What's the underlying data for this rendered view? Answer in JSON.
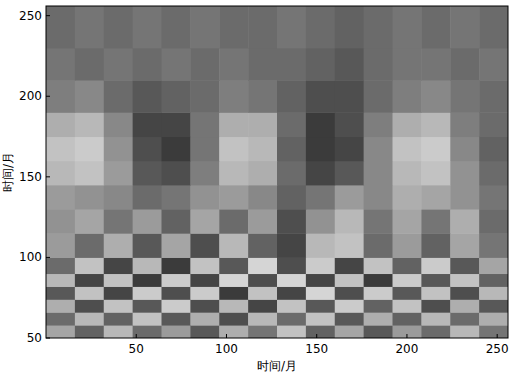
{
  "chart_data": {
    "type": "heatmap",
    "x_label": "时间/月",
    "y_label": "时间/月",
    "xlim": [
      0,
      256
    ],
    "ylim": [
      50,
      256
    ],
    "xticks": [
      50,
      100,
      150,
      200,
      250
    ],
    "yticks": [
      50,
      100,
      150,
      200,
      250
    ],
    "zlim": [
      -1,
      1
    ],
    "x_edges": [
      0,
      16,
      32,
      48,
      64,
      80,
      96,
      112,
      128,
      144,
      160,
      176,
      192,
      208,
      224,
      240,
      256
    ],
    "y_edges": [
      50,
      58,
      66,
      74,
      82,
      90,
      100,
      115,
      130,
      145,
      160,
      175,
      190,
      210,
      230,
      256
    ],
    "cells": [
      [
        0.3,
        -0.4,
        0.5,
        -0.3,
        0.2,
        -0.5,
        0.4,
        -0.2,
        0.6,
        -0.4,
        0.3,
        -0.5,
        0.2,
        -0.3,
        0.5,
        -0.2
      ],
      [
        -0.3,
        0.5,
        -0.4,
        0.6,
        -0.5,
        0.4,
        -0.6,
        0.5,
        -0.3,
        0.6,
        -0.5,
        0.4,
        -0.4,
        0.5,
        -0.3,
        0.4
      ],
      [
        0.4,
        -0.6,
        0.6,
        -0.5,
        0.7,
        -0.6,
        0.5,
        -0.7,
        0.6,
        -0.5,
        0.7,
        -0.4,
        0.6,
        -0.6,
        0.4,
        -0.5
      ],
      [
        -0.5,
        0.6,
        -0.7,
        0.7,
        -0.6,
        0.7,
        -0.8,
        0.6,
        -0.7,
        0.8,
        -0.6,
        0.7,
        -0.5,
        0.6,
        -0.6,
        0.5
      ],
      [
        0.5,
        -0.7,
        0.6,
        -0.8,
        0.7,
        -0.7,
        0.8,
        -0.6,
        0.8,
        -0.7,
        0.6,
        -0.8,
        0.7,
        -0.5,
        0.6,
        -0.4
      ],
      [
        -0.3,
        0.6,
        -0.7,
        0.5,
        -0.8,
        0.6,
        -0.5,
        0.8,
        -0.6,
        0.7,
        -0.7,
        0.6,
        -0.4,
        0.7,
        -0.5,
        0.3
      ],
      [
        0.2,
        -0.3,
        0.4,
        -0.5,
        0.3,
        -0.6,
        0.5,
        -0.4,
        -0.7,
        0.5,
        0.6,
        -0.3,
        0.2,
        -0.4,
        0.3,
        -0.2
      ],
      [
        0.1,
        0.3,
        -0.2,
        0.2,
        -0.4,
        0.3,
        -0.3,
        0.2,
        -0.6,
        0.1,
        0.5,
        -0.2,
        0.3,
        -0.2,
        0.4,
        -0.3
      ],
      [
        0.2,
        0.1,
        0.0,
        -0.3,
        -0.2,
        0.1,
        0.2,
        0.0,
        -0.4,
        -0.2,
        0.2,
        0.0,
        0.4,
        0.3,
        0.1,
        -0.2
      ],
      [
        0.5,
        0.6,
        0.2,
        -0.5,
        -0.6,
        -0.1,
        0.5,
        0.4,
        -0.3,
        -0.7,
        -0.5,
        0.0,
        0.5,
        0.6,
        0.1,
        -0.3
      ],
      [
        0.6,
        0.7,
        0.1,
        -0.6,
        -0.8,
        -0.2,
        0.6,
        0.5,
        -0.4,
        -0.8,
        -0.7,
        0.0,
        0.6,
        0.7,
        0.0,
        -0.4
      ],
      [
        0.4,
        0.5,
        0.0,
        -0.7,
        -0.7,
        -0.2,
        0.4,
        0.4,
        -0.3,
        -0.8,
        -0.6,
        -0.1,
        0.4,
        0.5,
        -0.1,
        -0.3
      ],
      [
        -0.1,
        0.0,
        -0.3,
        -0.5,
        -0.4,
        -0.3,
        -0.1,
        -0.2,
        -0.4,
        -0.6,
        -0.6,
        -0.3,
        -0.1,
        0.0,
        -0.2,
        -0.3
      ],
      [
        -0.2,
        -0.3,
        -0.2,
        -0.3,
        -0.2,
        -0.3,
        -0.2,
        -0.3,
        -0.3,
        -0.4,
        -0.5,
        -0.3,
        -0.2,
        -0.2,
        -0.3,
        -0.2
      ],
      [
        -0.3,
        -0.2,
        -0.3,
        -0.2,
        -0.3,
        -0.2,
        -0.3,
        -0.3,
        -0.2,
        -0.3,
        -0.4,
        -0.3,
        -0.2,
        -0.3,
        -0.2,
        -0.3
      ]
    ]
  }
}
